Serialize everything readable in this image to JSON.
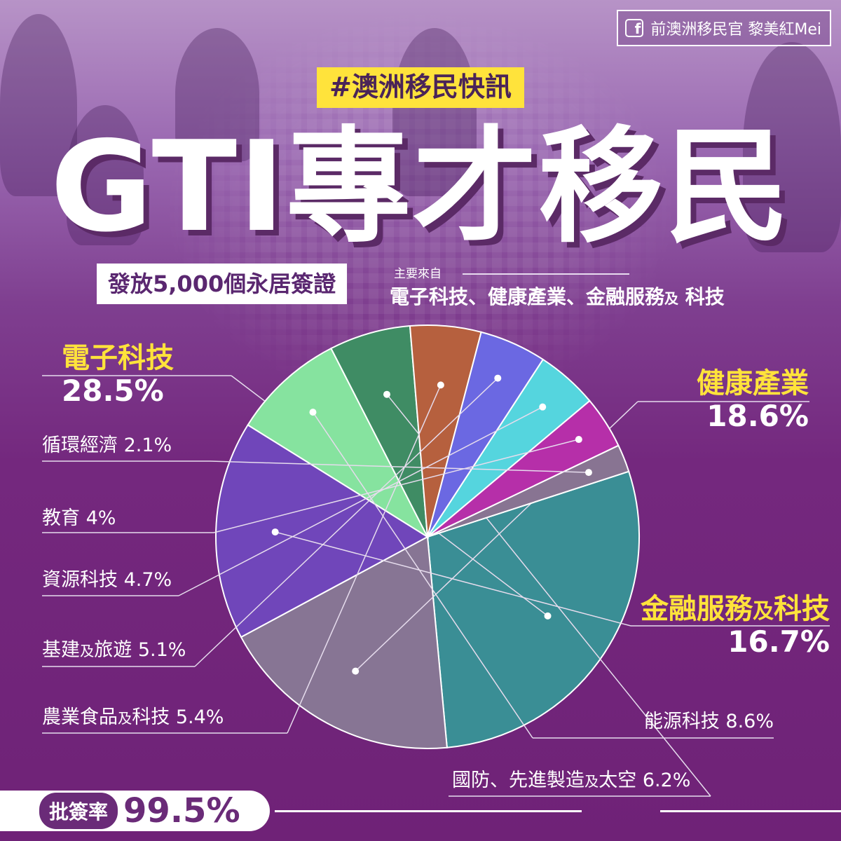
{
  "header": {
    "fb_name": "前澳洲移民官 黎美紅Mei",
    "hashtag": "#澳洲移民快訊",
    "title": "GTI專才移民",
    "visa_text": "發放5,000個永居簽證",
    "source_label": "主要來自",
    "source_list": {
      "part1": "電子科技、健康產業、金融服務",
      "and": "及",
      "part2": "科技"
    }
  },
  "approval": {
    "label": "批簽率",
    "rate": "99.5%"
  },
  "colors": {
    "accent": "#ffe33b",
    "brand_purple": "#6a2b78"
  },
  "chart_data": {
    "type": "pie",
    "title": "",
    "slices": [
      {
        "label": "電子科技",
        "value": 28.5,
        "display": "28.5%",
        "color": "#3a8e95"
      },
      {
        "label": "健康產業",
        "value": 18.6,
        "display": "18.6%",
        "color": "#877594"
      },
      {
        "label": "金融服務及科技",
        "value": 16.7,
        "display": "16.7%",
        "color": "#7046ba"
      },
      {
        "label": "能源科技",
        "value": 8.6,
        "display": "8.6%",
        "color": "#86e39f"
      },
      {
        "label": "國防、先進製造及太空",
        "value": 6.2,
        "display": "6.2%",
        "color": "#3f8c64"
      },
      {
        "label": "農業食品及科技",
        "value": 5.4,
        "display": "5.4%",
        "color": "#b6603e"
      },
      {
        "label": "基建及旅遊",
        "value": 5.1,
        "display": "5.1%",
        "color": "#6b68e2"
      },
      {
        "label": "資源科技",
        "value": 4.7,
        "display": "4.7%",
        "color": "#55d5de"
      },
      {
        "label": "教育",
        "value": 4,
        "display": "4%",
        "color": "#b62fa9"
      },
      {
        "label": "循環經濟",
        "value": 2.1,
        "display": "2.1%",
        "color": "#887492"
      }
    ],
    "legend": "none",
    "grid": false
  }
}
